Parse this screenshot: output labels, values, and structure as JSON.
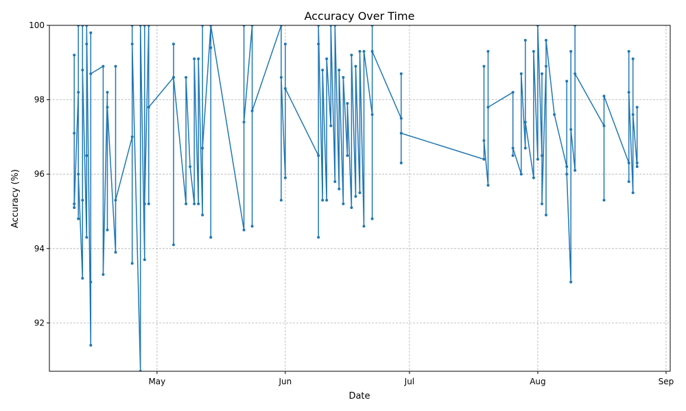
{
  "chart_data": {
    "type": "line",
    "title": "Accuracy Over Time",
    "xlabel": "Date",
    "ylabel": "Accuracy (%)",
    "xlim": [
      "2025-04-05",
      "2025-09-02"
    ],
    "ylim": [
      90.7,
      100
    ],
    "grid": true,
    "x_ticks": [
      "2025-05-01",
      "2025-06-01",
      "2025-07-01",
      "2025-08-01",
      "2025-09-01"
    ],
    "x_tick_labels": [
      "May",
      "Jun",
      "Jul",
      "Aug",
      "Sep"
    ],
    "y_ticks": [
      92,
      94,
      96,
      98,
      100
    ],
    "y_tick_labels": [
      "92",
      "94",
      "96",
      "98",
      "100"
    ],
    "line_color": "#1f77b4",
    "series": [
      {
        "points": [
          [
            "2025-04-11",
            95.2
          ],
          [
            "2025-04-11",
            99.2
          ],
          [
            "2025-04-11",
            97.1
          ],
          [
            "2025-04-11",
            95.1
          ],
          [
            "2025-04-12",
            98.2
          ],
          [
            "2025-04-12",
            94.8
          ],
          [
            "2025-04-12",
            100
          ],
          [
            "2025-04-12",
            96.0
          ],
          [
            "2025-04-13",
            93.2
          ],
          [
            "2025-04-13",
            100
          ],
          [
            "2025-04-13",
            95.3
          ],
          [
            "2025-04-13",
            98.8
          ],
          [
            "2025-04-14",
            94.3
          ],
          [
            "2025-04-14",
            99.5
          ],
          [
            "2025-04-14",
            96.5
          ],
          [
            "2025-04-14",
            100
          ],
          [
            "2025-04-15",
            91.4
          ],
          [
            "2025-04-15",
            99.8
          ],
          [
            "2025-04-15",
            93.1
          ],
          [
            "2025-04-15",
            98.7
          ],
          [
            "2025-04-18",
            98.9
          ],
          [
            "2025-04-18",
            93.3
          ],
          [
            "2025-04-19",
            98.2
          ],
          [
            "2025-04-19",
            94.5
          ],
          [
            "2025-04-19",
            97.8
          ],
          [
            "2025-04-21",
            93.9
          ],
          [
            "2025-04-21",
            98.9
          ],
          [
            "2025-04-21",
            95.3
          ],
          [
            "2025-04-25",
            97.0
          ],
          [
            "2025-04-25",
            100
          ],
          [
            "2025-04-25",
            93.6
          ],
          [
            "2025-04-25",
            99.5
          ],
          [
            "2025-04-27",
            90.7
          ],
          [
            "2025-04-27",
            100
          ],
          [
            "2025-04-28",
            93.7
          ],
          [
            "2025-04-28",
            100
          ],
          [
            "2025-04-28",
            95.2
          ],
          [
            "2025-04-29",
            100
          ],
          [
            "2025-04-29",
            95.2
          ],
          [
            "2025-04-29",
            97.8
          ],
          [
            "2025-05-05",
            98.6
          ],
          [
            "2025-05-05",
            94.1
          ],
          [
            "2025-05-05",
            99.5
          ],
          [
            "2025-05-05",
            98.6
          ],
          [
            "2025-05-08",
            95.2
          ],
          [
            "2025-05-08",
            98.6
          ],
          [
            "2025-05-09",
            96.2
          ],
          [
            "2025-05-10",
            95.2
          ],
          [
            "2025-05-10",
            99.1
          ],
          [
            "2025-05-11",
            95.2
          ],
          [
            "2025-05-11",
            99.1
          ],
          [
            "2025-05-12",
            94.9
          ],
          [
            "2025-05-12",
            100
          ],
          [
            "2025-05-12",
            96.7
          ],
          [
            "2025-05-14",
            100
          ],
          [
            "2025-05-14",
            94.3
          ],
          [
            "2025-05-14",
            99.4
          ],
          [
            "2025-05-14",
            100
          ],
          [
            "2025-05-22",
            94.5
          ],
          [
            "2025-05-22",
            100
          ],
          [
            "2025-05-22",
            97.4
          ],
          [
            "2025-05-24",
            100
          ],
          [
            "2025-05-24",
            94.6
          ],
          [
            "2025-05-24",
            97.7
          ],
          [
            "2025-05-31",
            100
          ],
          [
            "2025-05-31",
            95.3
          ],
          [
            "2025-05-31",
            98.6
          ],
          [
            "2025-06-01",
            95.9
          ],
          [
            "2025-06-01",
            99.5
          ],
          [
            "2025-06-01",
            98.3
          ],
          [
            "2025-06-09",
            96.5
          ],
          [
            "2025-06-09",
            99.5
          ],
          [
            "2025-06-09",
            94.3
          ],
          [
            "2025-06-09",
            100
          ],
          [
            "2025-06-10",
            95.3
          ],
          [
            "2025-06-10",
            98.8
          ],
          [
            "2025-06-11",
            95.3
          ],
          [
            "2025-06-11",
            99.1
          ],
          [
            "2025-06-12",
            97.3
          ],
          [
            "2025-06-12",
            100
          ],
          [
            "2025-06-13",
            95.8
          ],
          [
            "2025-06-13",
            100
          ],
          [
            "2025-06-14",
            95.6
          ],
          [
            "2025-06-14",
            98.8
          ],
          [
            "2025-06-15",
            95.2
          ],
          [
            "2025-06-15",
            98.6
          ],
          [
            "2025-06-16",
            96.5
          ],
          [
            "2025-06-16",
            97.9
          ],
          [
            "2025-06-17",
            95.1
          ],
          [
            "2025-06-17",
            99.2
          ],
          [
            "2025-06-18",
            95.4
          ],
          [
            "2025-06-18",
            98.9
          ],
          [
            "2025-06-19",
            95.5
          ],
          [
            "2025-06-19",
            99.3
          ],
          [
            "2025-06-20",
            94.6
          ],
          [
            "2025-06-20",
            99.3
          ],
          [
            "2025-06-22",
            97.6
          ],
          [
            "2025-06-22",
            100
          ],
          [
            "2025-06-22",
            94.8
          ],
          [
            "2025-06-22",
            99.3
          ],
          [
            "2025-06-29",
            97.5
          ],
          [
            "2025-06-29",
            98.7
          ],
          [
            "2025-06-29",
            96.3
          ],
          [
            "2025-06-29",
            97.1
          ],
          [
            "2025-07-19",
            96.4
          ],
          [
            "2025-07-19",
            98.9
          ],
          [
            "2025-07-19",
            96.9
          ],
          [
            "2025-07-20",
            95.7
          ],
          [
            "2025-07-20",
            99.3
          ],
          [
            "2025-07-20",
            97.8
          ],
          [
            "2025-07-26",
            98.2
          ],
          [
            "2025-07-26",
            96.5
          ],
          [
            "2025-07-26",
            96.7
          ],
          [
            "2025-07-28",
            96.0
          ],
          [
            "2025-07-28",
            98.7
          ],
          [
            "2025-07-29",
            96.7
          ],
          [
            "2025-07-29",
            99.6
          ],
          [
            "2025-07-29",
            97.4
          ],
          [
            "2025-07-31",
            95.9
          ],
          [
            "2025-07-31",
            99.3
          ],
          [
            "2025-08-01",
            96.4
          ],
          [
            "2025-08-01",
            100
          ],
          [
            "2025-08-02",
            96.5
          ],
          [
            "2025-08-02",
            98.7
          ],
          [
            "2025-08-02",
            95.2
          ],
          [
            "2025-08-03",
            98.9
          ],
          [
            "2025-08-03",
            94.9
          ],
          [
            "2025-08-03",
            99.6
          ],
          [
            "2025-08-05",
            97.6
          ],
          [
            "2025-08-08",
            96.2
          ],
          [
            "2025-08-08",
            98.5
          ],
          [
            "2025-08-08",
            96.0
          ],
          [
            "2025-08-09",
            93.1
          ],
          [
            "2025-08-09",
            99.3
          ],
          [
            "2025-08-09",
            97.2
          ],
          [
            "2025-08-10",
            96.1
          ],
          [
            "2025-08-10",
            100
          ],
          [
            "2025-08-10",
            98.7
          ],
          [
            "2025-08-17",
            97.3
          ],
          [
            "2025-08-17",
            95.3
          ],
          [
            "2025-08-17",
            98.1
          ],
          [
            "2025-08-23",
            96.3
          ],
          [
            "2025-08-23",
            99.3
          ],
          [
            "2025-08-23",
            95.8
          ],
          [
            "2025-08-23",
            98.2
          ],
          [
            "2025-08-24",
            95.5
          ],
          [
            "2025-08-24",
            99.1
          ],
          [
            "2025-08-24",
            97.6
          ],
          [
            "2025-08-25",
            96.2
          ],
          [
            "2025-08-25",
            97.8
          ],
          [
            "2025-08-25",
            96.3
          ]
        ]
      }
    ]
  }
}
